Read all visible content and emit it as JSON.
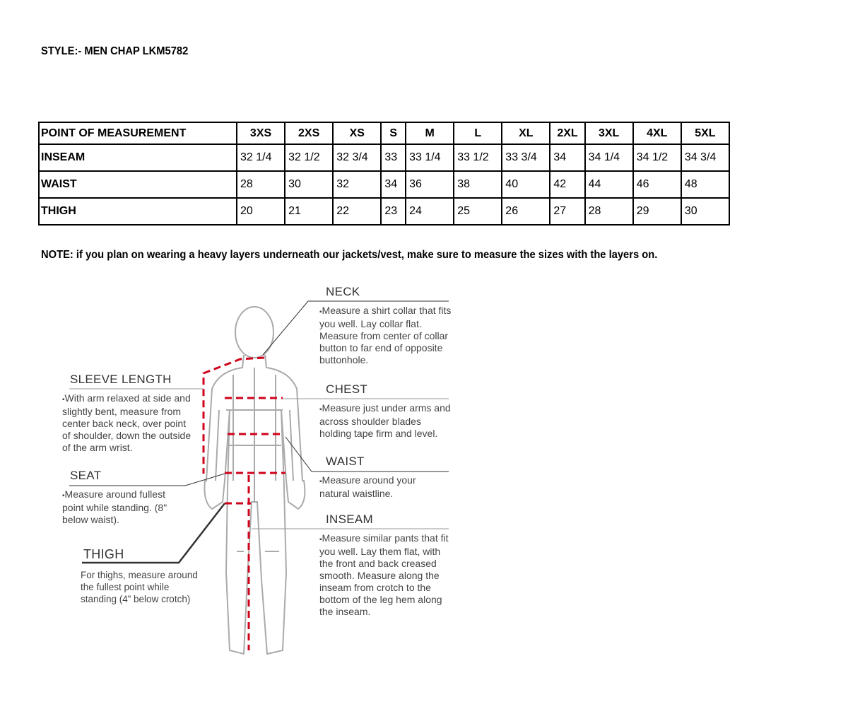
{
  "title": "STYLE:- MEN CHAP LKM5782",
  "table": {
    "header": [
      "POINT OF MEASUREMENT",
      "3XS",
      "2XS",
      "XS",
      "S",
      "M",
      "L",
      "XL",
      "2XL",
      "3XL",
      "4XL",
      "5XL"
    ],
    "rows": [
      {
        "label": "INSEAM",
        "values": [
          "32 1/4",
          "32 1/2",
          "32 3/4",
          "33",
          "33 1/4",
          "33 1/2",
          "33 3/4",
          "34",
          "34 1/4",
          "34 1/2",
          "34 3/4"
        ]
      },
      {
        "label": "WAIST",
        "values": [
          "28",
          "30",
          "32",
          "34",
          "36",
          "38",
          "40",
          "42",
          "44",
          "46",
          "48"
        ]
      },
      {
        "label": "THIGH",
        "values": [
          "20",
          "21",
          "22",
          "23",
          "24",
          "25",
          "26",
          "27",
          "28",
          "29",
          "30"
        ]
      }
    ]
  },
  "note": "NOTE: if you plan on wearing a heavy layers underneath our jackets/vest, make sure to measure the sizes with the layers on.",
  "guide": {
    "neck": {
      "title": "NECK",
      "text": "Measure a shirt collar that fits you well. Lay collar flat. Measure from center of collar button to far end of opposite buttonhole."
    },
    "chest": {
      "title": "CHEST",
      "text": "Measure just under arms and across shoulder blades holding tape firm and level."
    },
    "waist": {
      "title": "WAIST",
      "text": "Measure around your natural waistline."
    },
    "inseam": {
      "title": "INSEAM",
      "text": "Measure similar pants that fit you well. Lay them flat, with the front and back creased smooth. Measure along the inseam from crotch to the bottom of the leg hem along the inseam."
    },
    "sleeve": {
      "title": "SLEEVE LENGTH",
      "text": "With arm relaxed at side and slightly bent, measure from center back neck, over point of shoulder, down the outside of the arm wrist."
    },
    "seat": {
      "title": "SEAT",
      "text": "Measure around fullest point while standing. (8\" below waist)."
    },
    "thigh": {
      "title": "THIGH",
      "text": "For thighs, measure around the fullest point while standing (4” below crotch)"
    }
  },
  "colors": {
    "measure_line": "#d0021b",
    "figure": "#aaaaaa"
  }
}
